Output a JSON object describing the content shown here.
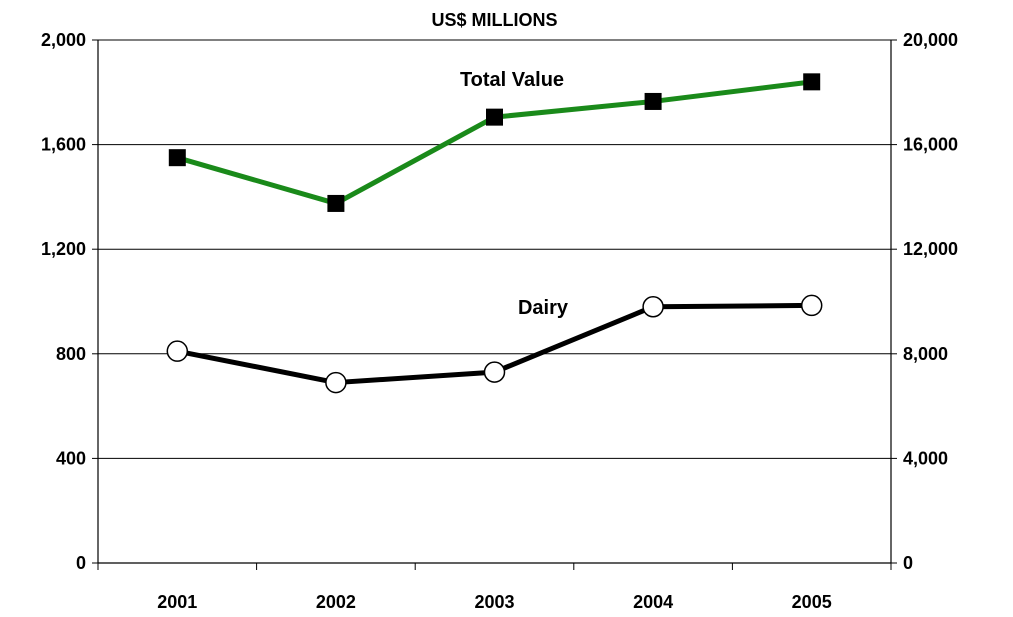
{
  "chart_data": {
    "type": "line",
    "title": "US$ MILLIONS",
    "xlabel": "",
    "ylabel": "",
    "categories": [
      "2001",
      "2002",
      "2003",
      "2004",
      "2005"
    ],
    "y_left": {
      "range": [
        0,
        2000
      ],
      "ticks": [
        0,
        400,
        800,
        1200,
        1600,
        2000
      ],
      "tick_labels": [
        "0",
        "400",
        "800",
        "1,200",
        "1,600",
        "2,000"
      ]
    },
    "y_right": {
      "range": [
        0,
        20000
      ],
      "ticks": [
        0,
        4000,
        8000,
        12000,
        16000,
        20000
      ],
      "tick_labels": [
        "0",
        "4,000",
        "8,000",
        "12,000",
        "16,000",
        "20,000"
      ]
    },
    "grid": "horizontal",
    "legend": "none",
    "series": [
      {
        "name": "Total Value",
        "axis": "right",
        "values": [
          15500,
          13750,
          17050,
          17650,
          18400
        ],
        "color": "#1a8a1a",
        "marker": "filled-square",
        "marker_color": "#000000"
      },
      {
        "name": "Dairy",
        "axis": "left",
        "values": [
          810,
          690,
          730,
          980,
          985
        ],
        "color": "#000000",
        "marker": "open-circle",
        "marker_color": "#ffffff"
      }
    ]
  }
}
